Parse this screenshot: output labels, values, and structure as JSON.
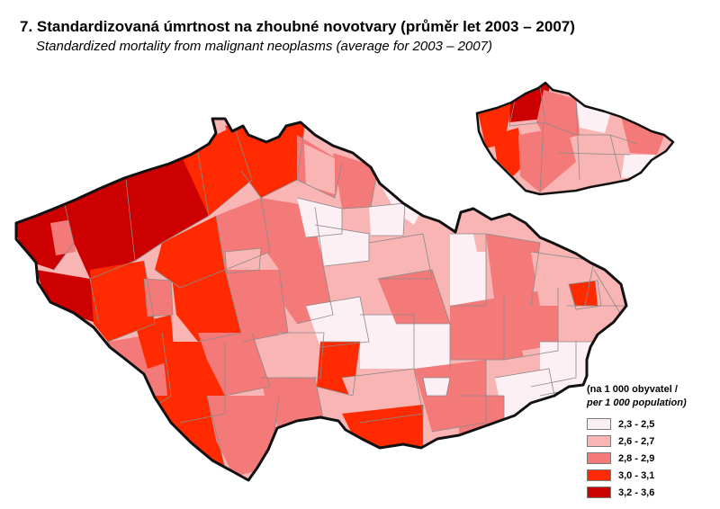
{
  "title": "7. Standardizovaná úmrtnost na zhoubné novotvary (průměr let 2003 – 2007)",
  "subtitle": "Standardized mortality from malignant neoplasms (average for 2003  – 2007)",
  "legend": {
    "title_cz": "(na 1 000 obyvatel /",
    "title_en": "per 1 000 population)",
    "classes": [
      {
        "label": "2,3 - 2,5",
        "color": "#fdf0f5"
      },
      {
        "label": "2,6 - 2,7",
        "color": "#f9b4b4"
      },
      {
        "label": "2,8 - 2,9",
        "color": "#f47a7a"
      },
      {
        "label": "3,0 - 3,1",
        "color": "#ff2a00"
      },
      {
        "label": "3,2 - 3,6",
        "color": "#cc0000"
      }
    ]
  },
  "colors": {
    "border": "#111111",
    "district_line": "#8a8a8a"
  }
}
